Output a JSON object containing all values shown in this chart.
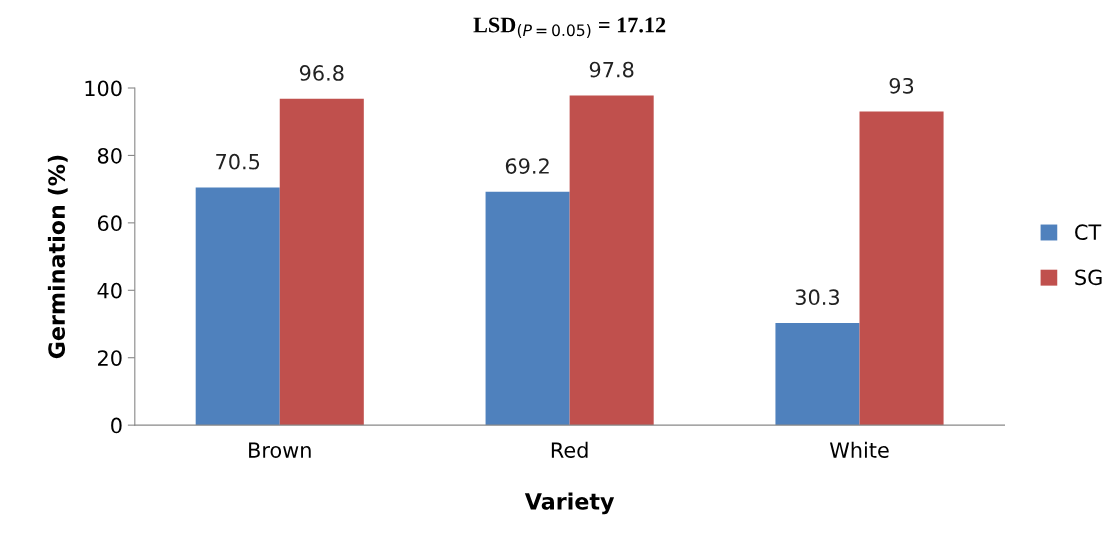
{
  "chart_data": {
    "type": "bar",
    "title": "LSD$_{(P=0.05)}$ = 17.12",
    "xlabel": "Variety",
    "ylabel": "Germination (%)",
    "categories": [
      "Brown",
      "Red",
      "White"
    ],
    "series": [
      {
        "name": "CT",
        "color": "#4f81bd",
        "values": [
          70.5,
          69.2,
          30.3
        ]
      },
      {
        "name": "SG",
        "color": "#c0504d",
        "values": [
          96.8,
          97.8,
          93
        ]
      }
    ],
    "ylim": [
      0,
      100
    ],
    "yticks": [
      0,
      20,
      40,
      60,
      80,
      100
    ],
    "grid": false,
    "legend": "right",
    "data_labels": true
  }
}
